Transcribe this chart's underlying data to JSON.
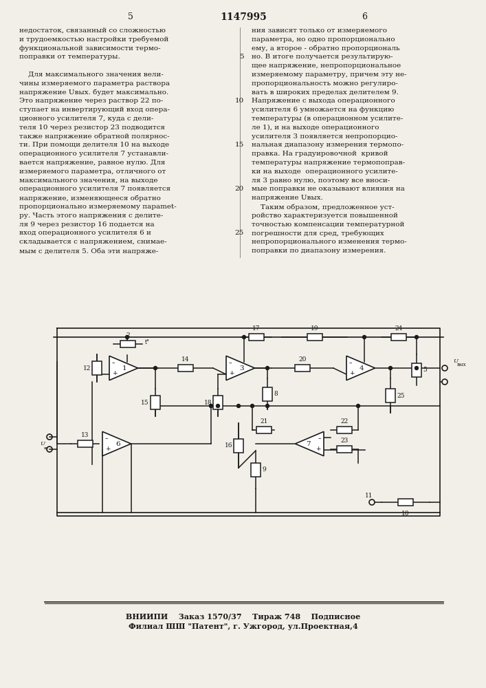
{
  "bg": "#f2efe8",
  "tc": "#1a1a1a",
  "lc": "#1a1a1a",
  "patent_number": "1147995",
  "page_left": "5",
  "page_right": "6",
  "footer1": "ВНИИПИ    Заказ 1570/37    Тираж 748    Подписное",
  "footer2": "Филиал ШШ \"Патент\", г. Ужгород, ул.Проектная,4",
  "left_col": [
    "недостаток, связанный со сложностью",
    "и трудоемкостью настройки требуемой",
    "функциональной зависимости термо-",
    "поправки от температуры.",
    "",
    "    Для максимального значения вели-",
    "чины измеряемого параметра раствора",
    "напряжение Uвых. будет максимально.",
    "Это напряжение через раствор 22 по-",
    "ступает на инвертирующий вход опера-",
    "ционного усилителя 7, куда с дели-",
    "теля 10 через резистор 23 подводится",
    "также напряжение обратной полярнос-",
    "ти. При помощи делителя 10 на выходе",
    "операционного усилителя 7 устанавли-",
    "вается напряжение, равное нулю. Для",
    "измеряемого параметра, отличного от",
    "максимального значения, на выходе",
    "операционного усилителя 7 появляется",
    "напряжение, изменяющееся обратно",
    "пропорционально измеряемому параmet-",
    "ру. Часть этого напряжения с делите-",
    "ля 9 через резистор 16 подается на",
    "вход операционного усилителя 6 и",
    "складывается с напряжением, снимае-",
    "мым с делителя 5. Оба эти напряже-"
  ],
  "right_col": [
    "ния зависят только от измеряемого",
    "параметра, но одно пропорционально",
    "ему, а второе - обратно пропорциональ",
    "но. В итоге получается результирую-",
    "щее напряжение, непропорциональное",
    "измеряемому параметру, причем эту не-",
    "пропорциональность можно регулиро-",
    "вать в широких пределах делителем 9.",
    "Напряжение с выхода операционного",
    "усилителя 6 умножается на функцию",
    "температуры (в операционном усилите-",
    "ле 1), и на выходе операционного",
    "усилителя 3 появляется непропорцио-",
    "нальная диапазону измерения термопо-",
    "правка. На градуировочной  кривой",
    "температуры напряжение термопоправ-",
    "ки на выходе  операционного усилите-",
    "ля 3 равно нулю, поэтому все вноси-",
    "мые поправки не оказывают влияния на",
    "напряжение Uвых.",
    "    Таким образом, предложенное уст-",
    "ройство характеризуется повышенной",
    "точностью компенсации температурной",
    "погрешности для сред, требующих",
    "непропорционального изменения термо-",
    "поправки по диапазону измерения."
  ],
  "line_nums": {
    "3": 5,
    "8": 10,
    "13": 15,
    "18": 20,
    "23": 25
  }
}
